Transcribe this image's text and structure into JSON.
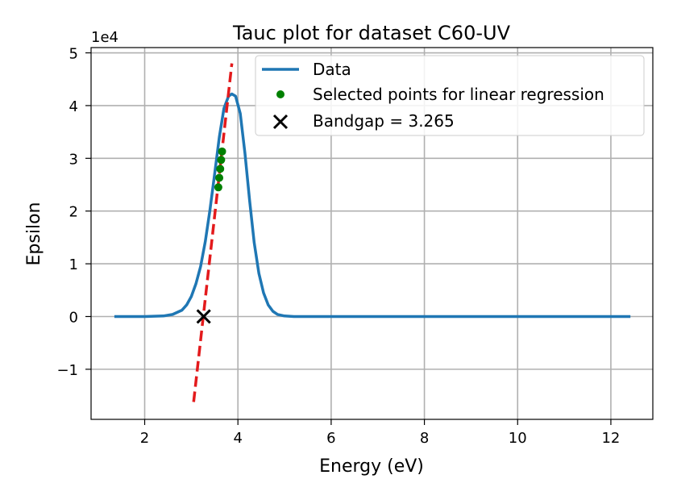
{
  "chart_data": {
    "type": "line",
    "title": "Tauc plot for dataset C60-UV",
    "xlabel": "Energy (eV)",
    "ylabel": "Epsilon",
    "y_offset_text": "1e4",
    "y_multiplier": 10000,
    "xlim": [
      0.85,
      12.9
    ],
    "ylim": [
      -1.95,
      5.1
    ],
    "xticks": [
      2,
      4,
      6,
      8,
      10,
      12
    ],
    "xtick_labels": [
      "2",
      "4",
      "6",
      "8",
      "10",
      "12"
    ],
    "yticks": [
      -1,
      0,
      1,
      2,
      3,
      4,
      5
    ],
    "ytick_labels": [
      "−1",
      "0",
      "1",
      "2",
      "3",
      "4",
      "5"
    ],
    "grid": true,
    "legend_position": "top-right",
    "series": [
      {
        "name": "Data",
        "kind": "line",
        "color": "#1f77b4",
        "x": [
          1.35,
          2.0,
          2.4,
          2.6,
          2.8,
          2.9,
          3.0,
          3.1,
          3.2,
          3.3,
          3.4,
          3.5,
          3.6,
          3.7,
          3.8,
          3.87,
          3.95,
          4.05,
          4.15,
          4.25,
          4.35,
          4.45,
          4.55,
          4.65,
          4.75,
          4.85,
          5.0,
          5.2,
          5.5,
          6.0,
          8.0,
          10.0,
          12.42
        ],
        "y": [
          0,
          0,
          0.01,
          0.04,
          0.12,
          0.22,
          0.38,
          0.62,
          0.95,
          1.42,
          2.02,
          2.7,
          3.4,
          3.95,
          4.18,
          4.22,
          4.18,
          3.85,
          3.1,
          2.2,
          1.4,
          0.82,
          0.45,
          0.22,
          0.1,
          0.04,
          0.01,
          0,
          0,
          0,
          0,
          0,
          0
        ]
      },
      {
        "name": "Selected points for linear regression",
        "kind": "points",
        "color": "#008000",
        "x": [
          3.58,
          3.6,
          3.62,
          3.64,
          3.66
        ],
        "y": [
          2.45,
          2.63,
          2.8,
          2.97,
          3.13
        ]
      },
      {
        "name": "Bandgap = 3.265",
        "kind": "marker",
        "color": "#000000",
        "x": [
          3.265
        ],
        "y": [
          0
        ]
      },
      {
        "name": "",
        "kind": "fit-line",
        "color": "#e31a1c",
        "x": [
          3.05,
          3.87
        ],
        "y": [
          -1.62,
          4.8
        ]
      }
    ]
  }
}
